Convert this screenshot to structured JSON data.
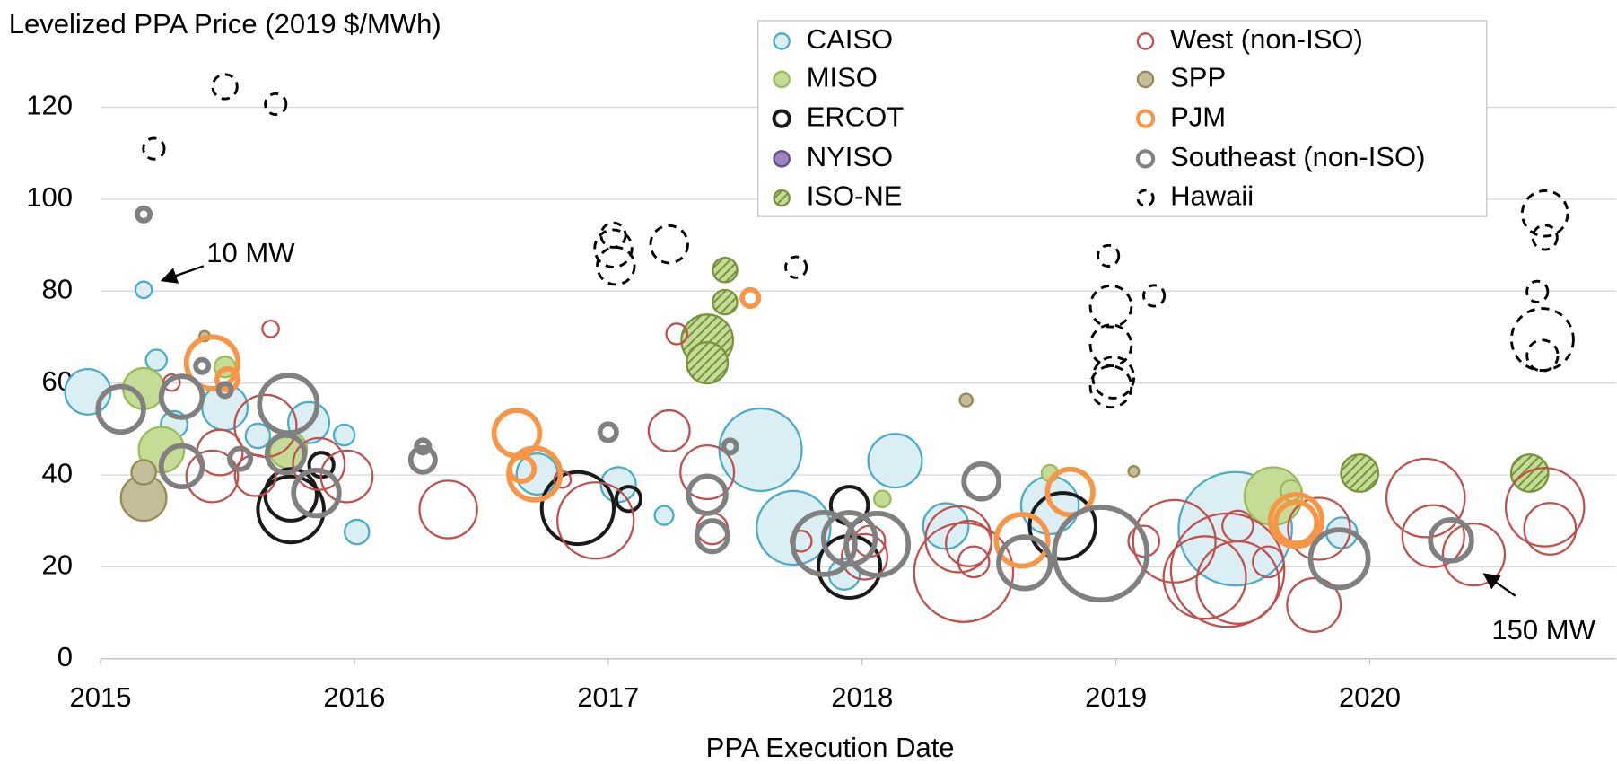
{
  "chart_data": {
    "type": "bubble",
    "y_label": "Levelized PPA Price (2019 $/MWh)",
    "x_label": "PPA Execution Date",
    "xlim": [
      2015,
      2021
    ],
    "xticks": [
      2015,
      2016,
      2017,
      2018,
      2019,
      2020
    ],
    "ylim": [
      0,
      130
    ],
    "yticks": [
      0,
      20,
      40,
      60,
      80,
      100,
      120
    ],
    "grid": true,
    "legend": "top-right",
    "annotations": [
      "10 MW",
      "150 MW"
    ],
    "series": [
      {
        "name": "CAISO",
        "color": "#4bacc6",
        "fill": "#dbeef4",
        "marker": "filled",
        "x": [
          2014.95,
          2015.17,
          2015.22,
          2015.29,
          2015.49,
          2015.62,
          2015.82,
          2015.96,
          2016.01,
          2016.72,
          2017.04,
          2017.22,
          2017.6,
          2017.73,
          2018.13,
          2017.93,
          2018.33,
          2018.74,
          2019.47,
          2019.89
        ],
        "values": [
          58.1,
          80.3,
          65.0,
          51.0,
          54.7,
          48.5,
          51.4,
          48.7,
          27.6,
          40.2,
          37.9,
          31.2,
          45.5,
          28.5,
          43.1,
          18.4,
          28.9,
          33.4,
          28.3,
          27.4
        ],
        "sizes": [
          76,
          10,
          16,
          26,
          76,
          22,
          62,
          16,
          22,
          62,
          45,
          13,
          250,
          200,
          106,
          35,
          76,
          122,
          473,
          35
        ]
      },
      {
        "name": "MISO",
        "color": "#9bbb59",
        "fill": "#c4dc96",
        "marker": "filled",
        "x": [
          2015.17,
          2015.24,
          2015.49,
          2015.74,
          2018.08,
          2018.74,
          2019.62,
          2019.69
        ],
        "values": [
          58.8,
          45.5,
          63.5,
          45.5,
          34.8,
          40.4,
          35.4,
          36.6
        ],
        "sizes": [
          62,
          76,
          16,
          51,
          10,
          10,
          122,
          16
        ]
      },
      {
        "name": "ERCOT",
        "color": "#1a1a1a",
        "marker": "open-thick",
        "x": [
          2015.75,
          2015.75,
          2015.87,
          2016.88,
          2017.08,
          2017.95,
          2017.95,
          2018.79
        ],
        "values": [
          32.5,
          35.7,
          42.2,
          32.8,
          34.8,
          20.0,
          33.4,
          28.9
        ],
        "sizes": [
          160,
          98,
          22,
          191,
          22,
          141,
          51,
          160
        ]
      },
      {
        "name": "NYISO",
        "color": "#5f4b8b",
        "fill": "#9c85c0",
        "marker": "filled",
        "x": [],
        "values": [],
        "sizes": []
      },
      {
        "name": "ISO-NE",
        "color": "#77933c",
        "marker": "hatched",
        "x": [
          2017.46,
          2017.46,
          2017.39,
          2017.39,
          2019.96,
          2020.63
        ],
        "values": [
          84.6,
          77.6,
          69.3,
          64.4,
          40.4,
          40.4
        ],
        "sizes": [
          22,
          22,
          98,
          62,
          51,
          51
        ]
      },
      {
        "name": "West (non-ISO)",
        "color": "#c0504d",
        "marker": "open",
        "x": [
          2015.67,
          2015.28,
          2015.47,
          2015.44,
          2015.61,
          2015.65,
          2015.86,
          2015.97,
          2016.37,
          2016.82,
          2016.95,
          2017.24,
          2017.27,
          2017.39,
          2017.41,
          2017.76,
          2018.01,
          2018.03,
          2018.4,
          2018.38,
          2018.42,
          2018.44,
          2019.11,
          2019.23,
          2019.35,
          2019.44,
          2019.48,
          2019.48,
          2019.6,
          2019.78,
          2019.8,
          2020.22,
          2020.25,
          2020.41,
          2020.69,
          2020.71
        ],
        "values": [
          71.8,
          60.1,
          44.9,
          39.7,
          39.9,
          50.7,
          42.4,
          39.7,
          32.5,
          39.0,
          30.1,
          49.6,
          70.7,
          40.6,
          28.3,
          25.6,
          22.2,
          25.6,
          18.8,
          26.0,
          25.1,
          21.1,
          25.6,
          25.6,
          17.7,
          19.3,
          16.6,
          28.9,
          21.1,
          11.7,
          28.3,
          35.0,
          26.7,
          22.7,
          33.0,
          28.3
        ],
        "sizes": [
          10,
          10,
          76,
          98,
          62,
          141,
          98,
          98,
          122,
          10,
          214,
          62,
          16,
          106,
          35,
          16,
          76,
          35,
          360,
          160,
          76,
          35,
          35,
          250,
          250,
          473,
          250,
          35,
          35,
          106,
          141,
          226,
          141,
          141,
          226,
          98
        ]
      },
      {
        "name": "SPP",
        "color": "#948a54",
        "fill": "#c4bd97",
        "marker": "filled",
        "x": [
          2015.17,
          2015.17,
          2015.41,
          2018.41,
          2019.07
        ],
        "values": [
          35.0,
          40.6,
          70.2,
          56.3,
          40.8
        ],
        "sizes": [
          76,
          22,
          4,
          6,
          4
        ]
      },
      {
        "name": "PJM",
        "color": "#f79646",
        "marker": "open-heavy",
        "x": [
          2015.44,
          2015.5,
          2016.64,
          2016.66,
          2016.71,
          2017.56,
          2018.63,
          2018.82,
          2019.71,
          2019.71
        ],
        "values": [
          64.4,
          60.8,
          49.1,
          41.3,
          40.2,
          78.5,
          25.8,
          36.3,
          30.1,
          29.6
        ],
        "sizes": [
          98,
          16,
          76,
          22,
          98,
          10,
          98,
          76,
          98,
          62
        ]
      },
      {
        "name": "Southeast (non-ISO)",
        "color": "#808080",
        "marker": "open-heavy",
        "x": [
          2015.17,
          2015.08,
          2015.32,
          2015.4,
          2015.49,
          2015.55,
          2015.32,
          2015.74,
          2015.73,
          2015.85,
          2016.27,
          2016.27,
          2017.0,
          2017.39,
          2017.41,
          2017.48,
          2017.85,
          2017.95,
          2018.06,
          2018.47,
          2018.64,
          2018.94,
          2019.88,
          2020.32
        ],
        "values": [
          96.7,
          54.3,
          57.0,
          63.7,
          58.5,
          43.5,
          41.9,
          55.4,
          44.6,
          36.1,
          46.2,
          43.3,
          49.3,
          35.7,
          26.7,
          46.2,
          25.1,
          26.2,
          24.9,
          38.6,
          20.9,
          22.9,
          21.8,
          25.8
        ],
        "sizes": [
          6,
          76,
          62,
          6,
          6,
          16,
          62,
          122,
          51,
          76,
          6,
          22,
          10,
          51,
          35,
          6,
          141,
          98,
          141,
          45,
          98,
          316,
          122,
          62
        ]
      },
      {
        "name": "Hawaii",
        "color": "#000000",
        "marker": "dashed",
        "x": [
          2015.21,
          2015.49,
          2015.69,
          2017.02,
          2017.02,
          2017.03,
          2017.24,
          2017.74,
          2018.97,
          2018.98,
          2018.98,
          2019.15,
          2018.98,
          2018.99,
          2020.69,
          2020.69,
          2020.66,
          2020.68,
          2020.68
        ],
        "values": [
          111.0,
          124.5,
          120.7,
          92.2,
          89.3,
          85.5,
          90.2,
          85.2,
          87.7,
          76.7,
          68.2,
          79.0,
          59.2,
          61.2,
          96.9,
          91.7,
          79.9,
          69.5,
          66.0
        ],
        "sizes": [
          16,
          22,
          16,
          22,
          51,
          51,
          51,
          16,
          16,
          62,
          62,
          16,
          62,
          62,
          76,
          22,
          16,
          141,
          35
        ]
      }
    ]
  }
}
